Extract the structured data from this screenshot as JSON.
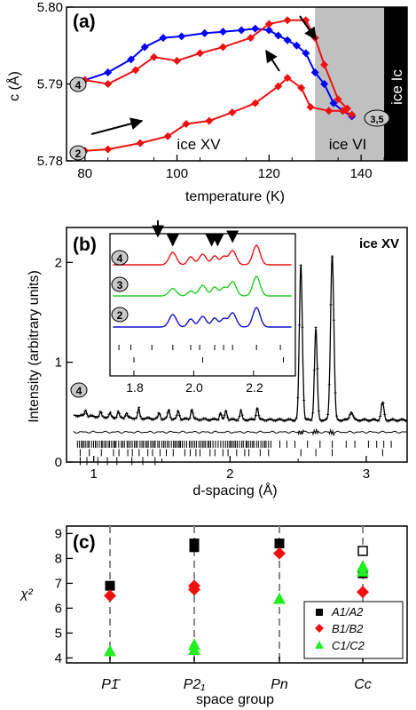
{
  "chart_data": [
    {
      "panel": "(a)",
      "type": "line",
      "xlabel": "temperature (K)",
      "ylabel": "c (Å)",
      "xlim": [
        76,
        150
      ],
      "ylim": [
        5.78,
        5.8
      ],
      "xticks": [
        "80",
        "100",
        "120",
        "140"
      ],
      "yticks": [
        "5.78",
        "5.79",
        "5.80"
      ],
      "colors": {
        "blue": "#0000ff",
        "red": "#ee1111",
        "vi_band": "#c0c0c0",
        "ic_band": "#000000"
      },
      "region_labels": {
        "xv": "ice XV",
        "vi": "ice VI",
        "ic": "ice Ic"
      },
      "regions": {
        "vi": [
          130,
          145
        ],
        "ic": [
          145,
          150
        ]
      },
      "markers": {
        "m4": "4",
        "m2": "2",
        "m35": "3,5"
      },
      "series": [
        {
          "color": "blue",
          "marker": "diamond",
          "x": [
            80,
            85,
            90,
            93,
            97,
            101,
            106,
            110,
            114,
            117,
            120,
            122,
            124,
            126,
            128,
            130,
            132,
            134,
            136,
            138
          ],
          "y": [
            5.7905,
            5.7915,
            5.7932,
            5.7948,
            5.796,
            5.7962,
            5.7966,
            5.7968,
            5.797,
            5.7972,
            5.797,
            5.7963,
            5.7957,
            5.795,
            5.794,
            5.7915,
            5.79,
            5.7875,
            5.7865,
            5.7858
          ]
        },
        {
          "color": "red",
          "marker": "diamond",
          "x": [
            80,
            85,
            91,
            95,
            100,
            105,
            110,
            116,
            120,
            124,
            128,
            130,
            132,
            135,
            137
          ],
          "y": [
            5.7905,
            5.79,
            5.7918,
            5.7935,
            5.793,
            5.794,
            5.7948,
            5.796,
            5.7978,
            5.7983,
            5.7983,
            5.796,
            5.7925,
            5.788,
            5.7868
          ]
        },
        {
          "color": "red",
          "marker": "diamond",
          "x": [
            80,
            85,
            92,
            98,
            102,
            107,
            112,
            117,
            122,
            124,
            127,
            129,
            133,
            136,
            138
          ],
          "y": [
            5.7813,
            5.7815,
            5.7823,
            5.7832,
            5.7848,
            5.7852,
            5.7863,
            5.7875,
            5.7897,
            5.7908,
            5.7895,
            5.787,
            5.7865,
            5.7865,
            5.786
          ]
        }
      ]
    },
    {
      "panel": "(b)",
      "type": "line",
      "title": "ice XV",
      "xlabel": "d-spacing (Å)",
      "ylabel": "Intensity (arbitrary units)",
      "xlim": [
        0.8,
        3.3
      ],
      "ylim": [
        0,
        2.35
      ],
      "xticks": [
        "1",
        "2",
        "3"
      ],
      "yticks": [
        "0",
        "1",
        "2"
      ],
      "marker_label": "4",
      "inset_xticks": [
        "1.8",
        "2.0",
        "2.2"
      ],
      "inset_labels": [
        "4",
        "3",
        "2"
      ],
      "inset_colors": [
        "#ee1111",
        "#22cc22",
        "#1111cc"
      ],
      "profile_peaks": [
        {
          "d": 2.52,
          "h": 1.55,
          "w": 0.011
        },
        {
          "d": 2.63,
          "h": 0.92,
          "w": 0.01
        },
        {
          "d": 2.75,
          "h": 1.65,
          "w": 0.012
        },
        {
          "d": 2.89,
          "h": 0.08,
          "w": 0.012
        },
        {
          "d": 3.12,
          "h": 0.18,
          "w": 0.01
        },
        {
          "d": 2.2,
          "h": 0.12,
          "w": 0.008
        },
        {
          "d": 2.08,
          "h": 0.09,
          "w": 0.008
        },
        {
          "d": 1.97,
          "h": 0.09,
          "w": 0.008
        },
        {
          "d": 1.93,
          "h": 0.07,
          "w": 0.007
        },
        {
          "d": 1.72,
          "h": 0.1,
          "w": 0.008
        },
        {
          "d": 1.62,
          "h": 0.08,
          "w": 0.008
        },
        {
          "d": 1.55,
          "h": 0.09,
          "w": 0.008
        },
        {
          "d": 1.48,
          "h": 0.06,
          "w": 0.007
        },
        {
          "d": 1.33,
          "h": 0.1,
          "w": 0.007
        },
        {
          "d": 1.24,
          "h": 0.05,
          "w": 0.007
        },
        {
          "d": 1.18,
          "h": 0.06,
          "w": 0.007
        },
        {
          "d": 1.12,
          "h": 0.04,
          "w": 0.007
        },
        {
          "d": 1.05,
          "h": 0.05,
          "w": 0.007
        },
        {
          "d": 0.94,
          "h": 0.06,
          "w": 0.007
        }
      ]
    },
    {
      "panel": "(c)",
      "type": "scatter",
      "xlabel": "space group",
      "ylabel": "χ²",
      "categories": [
        "P1̄",
        "P2₁",
        "Pn",
        "Cc"
      ],
      "ylim": [
        3.8,
        9.3
      ],
      "yticks": [
        "4",
        "5",
        "6",
        "7",
        "8",
        "9"
      ],
      "series": [
        {
          "name": "A1/A2",
          "color": "#000000",
          "marker": "square",
          "points": [
            [
              0,
              6.9
            ],
            [
              1,
              8.6
            ],
            [
              1,
              8.45
            ],
            [
              2,
              8.6
            ],
            [
              3,
              7.4
            ]
          ]
        },
        {
          "name": "B1/B2",
          "color": "#ee1111",
          "marker": "diamond",
          "points": [
            [
              0,
              6.5
            ],
            [
              1,
              6.9
            ],
            [
              1,
              6.75
            ],
            [
              2,
              8.2
            ],
            [
              3,
              6.65
            ]
          ]
        },
        {
          "name": "C1/C2",
          "color": "#22ee22",
          "marker": "triangle",
          "points": [
            [
              0,
              4.25
            ],
            [
              1,
              4.5
            ],
            [
              1,
              4.3
            ],
            [
              2,
              6.35
            ],
            [
              3,
              7.65
            ],
            [
              3,
              7.45
            ]
          ]
        }
      ],
      "open_square": [
        3,
        8.3
      ]
    }
  ]
}
